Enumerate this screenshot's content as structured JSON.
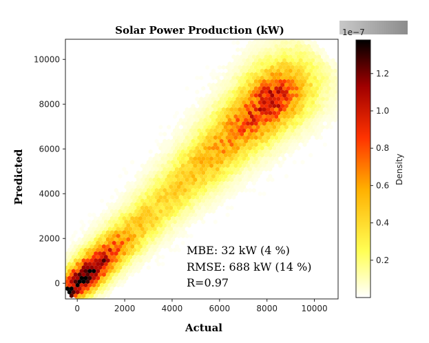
{
  "chart_data": {
    "type": "heatmap",
    "subtype": "hexbin-density",
    "title": "Solar Power Production (kW)",
    "xlabel": "Actual",
    "ylabel": "Predicted",
    "xlim": [
      -500,
      11000
    ],
    "ylim": [
      -700,
      10900
    ],
    "xticks": [
      0,
      2000,
      4000,
      6000,
      8000,
      10000
    ],
    "yticks": [
      0,
      2000,
      4000,
      6000,
      8000,
      10000
    ],
    "xtick_labels": [
      "0",
      "2000",
      "4000",
      "6000",
      "8000",
      "10000"
    ],
    "ytick_labels": [
      "0",
      "2000",
      "4000",
      "6000",
      "8000",
      "10000"
    ],
    "colormap": "hot_r",
    "density_range": [
      0,
      1.38
    ],
    "density_profile_along_diagonal": [
      {
        "actual": 0,
        "density": 1.2
      },
      {
        "actual": 300,
        "density": 1.35
      },
      {
        "actual": 800,
        "density": 1.2
      },
      {
        "actual": 1500,
        "density": 0.75
      },
      {
        "actual": 2500,
        "density": 0.45
      },
      {
        "actual": 3500,
        "density": 0.35
      },
      {
        "actual": 4500,
        "density": 0.4
      },
      {
        "actual": 5500,
        "density": 0.5
      },
      {
        "actual": 6500,
        "density": 0.6
      },
      {
        "actual": 7500,
        "density": 0.8
      },
      {
        "actual": 8300,
        "density": 0.95
      },
      {
        "actual": 9000,
        "density": 0.6
      },
      {
        "actual": 9600,
        "density": 0.25
      },
      {
        "actual": 10200,
        "density": 0.05
      }
    ],
    "colorbar": {
      "label": "Density",
      "scale_label": "1e−7",
      "ticks": [
        0.2,
        0.4,
        0.6,
        0.8,
        1.0,
        1.2
      ],
      "tick_labels": [
        "0.2",
        "0.4",
        "0.6",
        "0.8",
        "1.0",
        "1.2"
      ],
      "range": [
        0,
        1.38
      ]
    },
    "annotations": {
      "mbe": "MBE: 32 kW (4 %)",
      "rmse": "RMSE: 688 kW (14 %)",
      "r": "R=0.97"
    }
  },
  "colors": {
    "text": "#000000",
    "axis": "#222222",
    "colormap_stops": [
      "#ffffff",
      "#ffff33",
      "#ffb000",
      "#ff3300",
      "#b00000",
      "#000000"
    ]
  }
}
